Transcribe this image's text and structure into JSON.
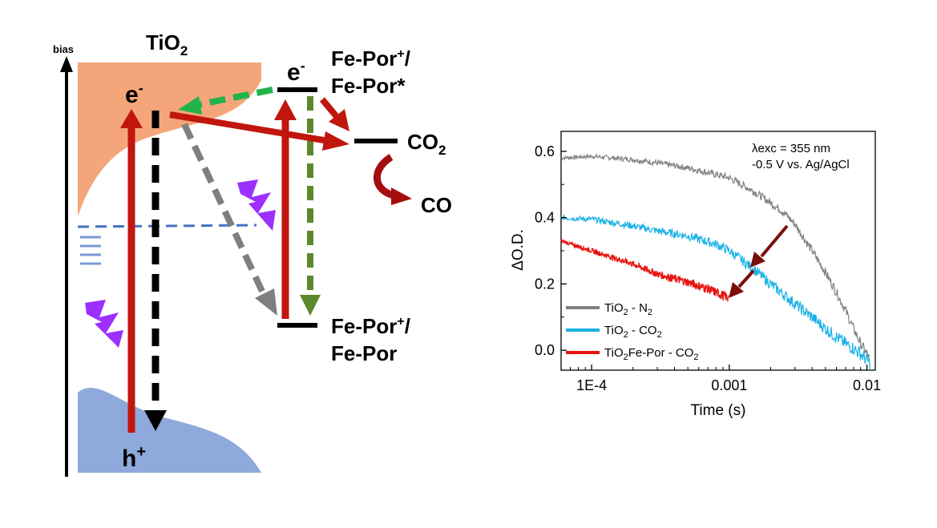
{
  "diagram": {
    "bias_label": "bias",
    "material_label": "TiO",
    "material_sub": "2",
    "electron_label": "e",
    "electron_sup": "-",
    "hole_label": "h",
    "hole_sup": "+",
    "fe_electron_label": "e",
    "fe_electron_sup": "-",
    "fe_upper_line1": "Fe-Por",
    "fe_upper_line1_sup": "+",
    "fe_upper_line1_suffix": "/",
    "fe_upper_line2": "Fe-Por*",
    "fe_lower_line1": "Fe-Por",
    "fe_lower_line1_sup": "+",
    "fe_lower_line1_suffix": "/",
    "fe_lower_line2": "Fe-Por",
    "co2_label": "CO",
    "co2_sub": "2",
    "co_label": "CO",
    "colors": {
      "conduction_band": "#f4a67a",
      "valence_band": "#8ea9db",
      "red_arrow": "#c0160e",
      "black_arrow": "#000000",
      "green_arrow": "#22b24c",
      "olive_arrow": "#5b8a2b",
      "gray_arrow": "#7f7f7f",
      "trap_states": "#4472c4",
      "lightning": "#9b30ff",
      "co_arrow": "#a50e0e"
    }
  },
  "chart_data": {
    "type": "line",
    "x_scale": "log",
    "xlim": [
      6e-05,
      0.0115
    ],
    "ylim": [
      -0.06,
      0.66
    ],
    "xlabel": "Time (s)",
    "ylabel": "ΔO.D.",
    "x_ticks": [
      0.0001,
      0.001,
      0.01
    ],
    "x_tick_labels": [
      "1E-4",
      "0.001",
      "0.01"
    ],
    "y_ticks": [
      0.0,
      0.2,
      0.4,
      0.6
    ],
    "y_tick_labels": [
      "0.0",
      "0.2",
      "0.4",
      "0.6"
    ],
    "annotation_line1": "λexc = 355 nm",
    "annotation_line2": "-0.5 V vs. Ag/AgCl",
    "series": [
      {
        "name": "TiO2 - N2",
        "legend_main": "TiO",
        "legend_sub": "2",
        "legend_rest": " - N",
        "legend_sub2": "2",
        "legend_tail": "",
        "color": "#808080",
        "x": [
          6e-05,
          0.0001,
          0.0002,
          0.0003,
          0.0005,
          0.0008,
          0.001,
          0.0015,
          0.002,
          0.0025,
          0.003,
          0.004,
          0.005,
          0.006,
          0.007,
          0.008,
          0.009,
          0.01,
          0.0105
        ],
        "y": [
          0.58,
          0.585,
          0.575,
          0.565,
          0.55,
          0.53,
          0.52,
          0.48,
          0.445,
          0.415,
          0.38,
          0.3,
          0.235,
          0.175,
          0.12,
          0.065,
          0.02,
          -0.01,
          -0.03
        ]
      },
      {
        "name": "TiO2 - CO2",
        "legend_main": "TiO",
        "legend_sub": "2",
        "legend_rest": " - CO",
        "legend_sub2": "2",
        "legend_tail": "",
        "color": "#1ab2e6",
        "x": [
          6e-05,
          0.0001,
          0.0002,
          0.0003,
          0.0005,
          0.0008,
          0.001,
          0.0015,
          0.002,
          0.003,
          0.004,
          0.005,
          0.006,
          0.007,
          0.008,
          0.009,
          0.01,
          0.0105
        ],
        "y": [
          0.4,
          0.395,
          0.375,
          0.36,
          0.345,
          0.32,
          0.3,
          0.245,
          0.2,
          0.14,
          0.1,
          0.065,
          0.04,
          0.02,
          0.005,
          -0.01,
          -0.03,
          -0.04
        ]
      },
      {
        "name": "TiO2Fe-Por - CO2",
        "legend_main": "TiO",
        "legend_sub": "2",
        "legend_rest": "Fe-Por - CO",
        "legend_sub2": "2",
        "legend_tail": "",
        "color": "#e8130f",
        "x": [
          6e-05,
          0.0001,
          0.0002,
          0.0003,
          0.0005,
          0.0007,
          0.0009,
          0.00098
        ],
        "y": [
          0.33,
          0.3,
          0.26,
          0.23,
          0.205,
          0.185,
          0.165,
          0.16
        ]
      }
    ]
  }
}
